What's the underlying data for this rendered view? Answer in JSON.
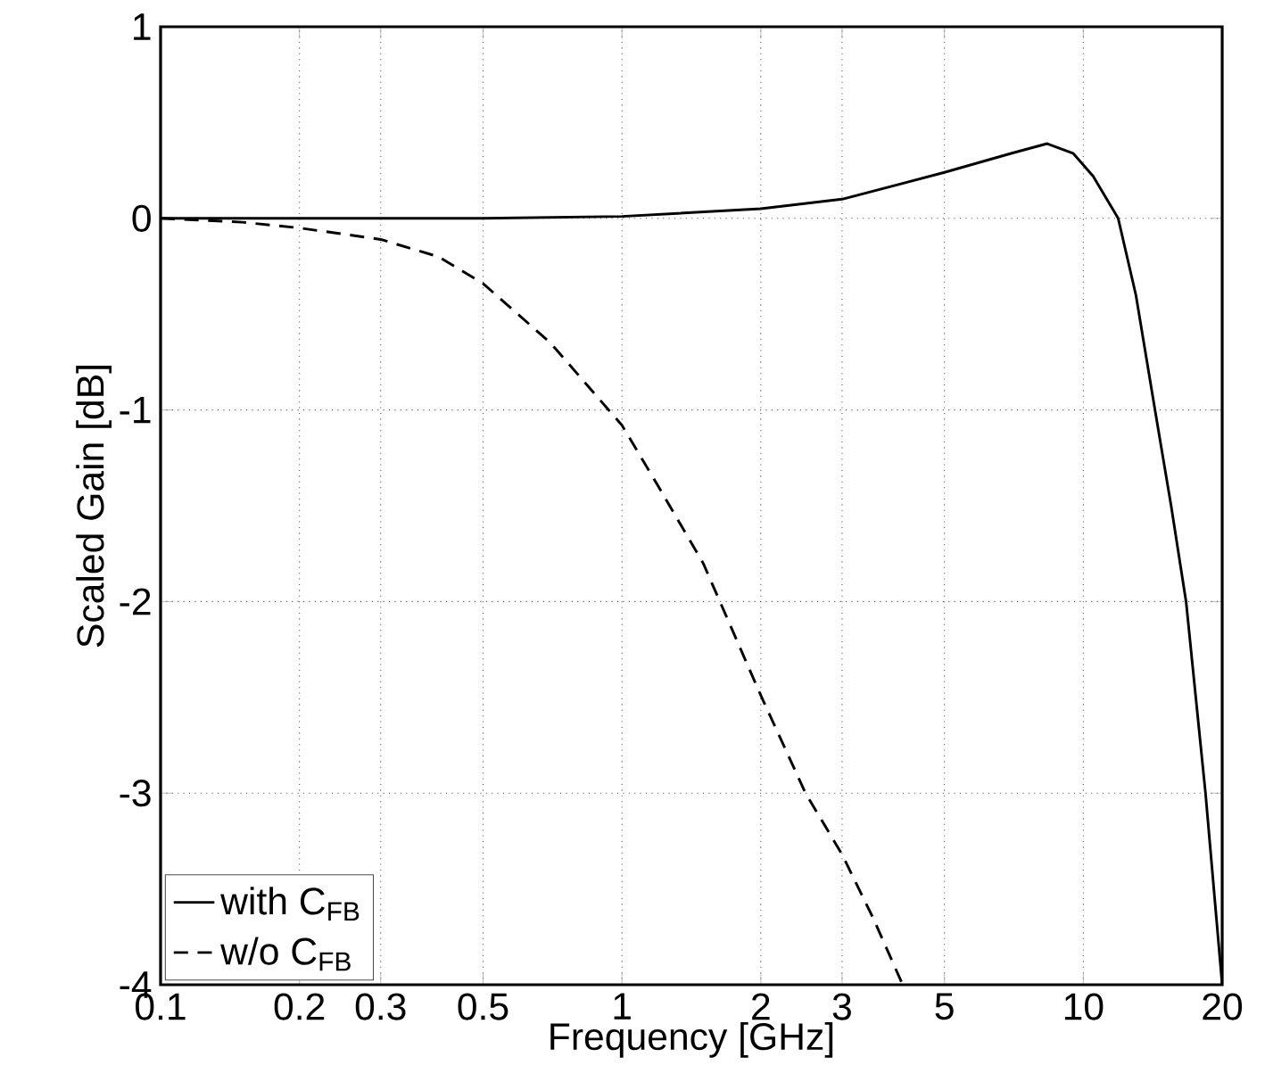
{
  "chart_data": {
    "type": "line",
    "xlabel": "Frequency [GHz]",
    "ylabel": "Scaled Gain [dB]",
    "log": "x",
    "xlim": [
      0.1,
      20
    ],
    "ylim": [
      -4,
      1
    ],
    "xticks": [
      0.1,
      0.2,
      0.3,
      0.5,
      1,
      2,
      3,
      5,
      10,
      20
    ],
    "yticks": [
      -4,
      -3,
      -2,
      -1,
      0,
      1
    ],
    "grid": true,
    "legend": "bottom left",
    "series": [
      {
        "name": "with C$_{FB}$",
        "color": "#000000",
        "line_style": "solid",
        "x": [
          0.1,
          0.2,
          0.5,
          1,
          2,
          3,
          5,
          7,
          8.35,
          9.5,
          10.5,
          11.9,
          13,
          14.3,
          15.5,
          16.7,
          18.4,
          20
        ],
        "values": [
          0,
          0,
          0,
          0.01,
          0.05,
          0.1,
          0.24,
          0.34,
          0.39,
          0.34,
          0.22,
          0,
          -0.4,
          -1,
          -1.5,
          -2,
          -3,
          -4
        ]
      },
      {
        "name": "w/o C$_{FB}$",
        "color": "#000000",
        "line_style": "dashed",
        "x": [
          0.1,
          0.15,
          0.2,
          0.3,
          0.4,
          0.5,
          0.7,
          1,
          1.2,
          1.5,
          2,
          2.5,
          3,
          3.5,
          4.06
        ],
        "values": [
          0,
          -0.02,
          -0.05,
          -0.11,
          -0.2,
          -0.34,
          -0.65,
          -1.08,
          -1.4,
          -1.8,
          -2.49,
          -3,
          -3.32,
          -3.65,
          -4
        ]
      }
    ]
  }
}
